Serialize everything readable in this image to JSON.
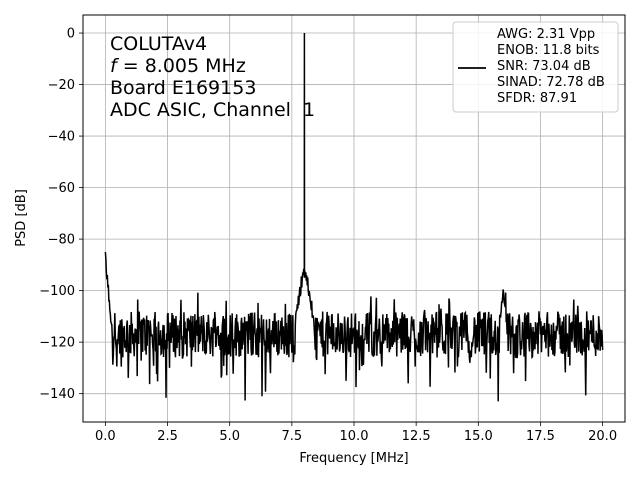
{
  "chart_data": {
    "type": "line",
    "xlabel": "Frequency [MHz]",
    "ylabel": "PSD [dB]",
    "xlim": [
      -0.9,
      20.9
    ],
    "ylim": [
      -151,
      7
    ],
    "xticks": [
      0.0,
      2.5,
      5.0,
      7.5,
      10.0,
      12.5,
      15.0,
      17.5,
      20.0
    ],
    "xtick_labels": [
      "0.0",
      "2.5",
      "5.0",
      "7.5",
      "10.0",
      "12.5",
      "15.0",
      "17.5",
      "20.0"
    ],
    "yticks": [
      0,
      -20,
      -40,
      -60,
      -80,
      -100,
      -120,
      -140
    ],
    "ytick_labels": [
      "0",
      "−20",
      "−40",
      "−60",
      "−80",
      "−100",
      "−120",
      "−140"
    ],
    "grid": true,
    "annotation": {
      "line1": "COLUTAv4",
      "line2_var": "f",
      "line2_rest": " = 8.005 MHz",
      "line3": "Board E169153",
      "line4": "ADC ASIC, Channel  1"
    },
    "legend": {
      "placement": "top-right",
      "lines": [
        "AWG: 2.31 Vpp",
        "ENOB: 11.8 bits",
        "SNR: 73.04 dB",
        "SINAD: 72.78 dB",
        "SFDR: 87.91"
      ]
    },
    "series": [
      {
        "color": "#000000",
        "noise_floor_mean": -117,
        "noise_floor_spread": 9,
        "x_start": 0,
        "x_end": 20,
        "x_step": 0.02,
        "features": [
          {
            "kind": "dc",
            "x": 0.0,
            "y": -88
          },
          {
            "kind": "tone",
            "x": 8.005,
            "y": 0
          },
          {
            "kind": "skirt",
            "x": 8.005,
            "width": 0.35,
            "y": -90
          },
          {
            "kind": "spur",
            "x": 16.0,
            "y": -100
          },
          {
            "kind": "dip",
            "x": 6.3,
            "y": -141
          },
          {
            "kind": "dip",
            "x": 15.8,
            "y": -143
          }
        ]
      }
    ]
  }
}
